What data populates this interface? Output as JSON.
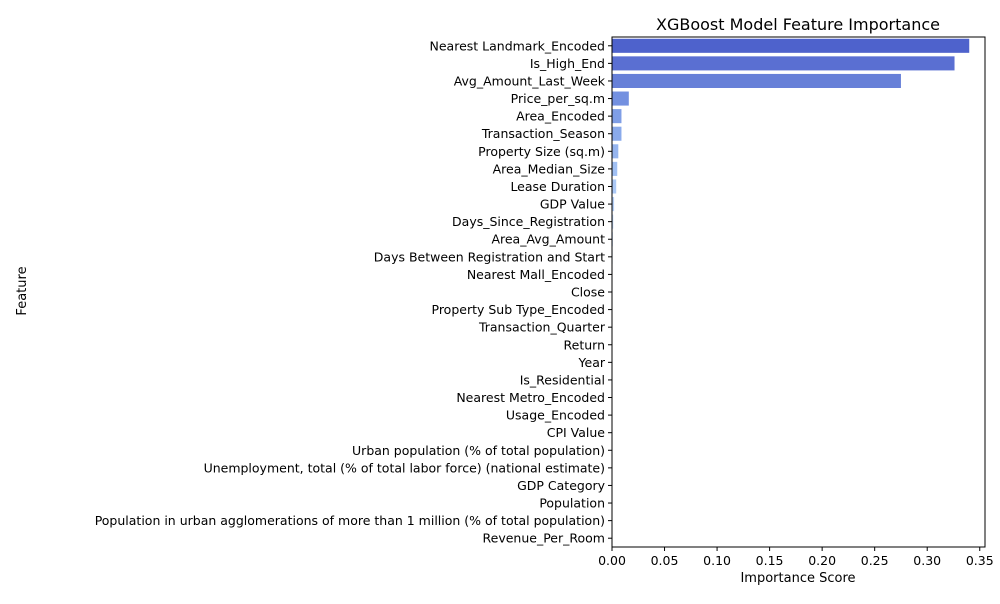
{
  "chart_data": {
    "type": "bar",
    "orientation": "horizontal",
    "title": "XGBoost Model Feature Importance",
    "xlabel": "Importance Score",
    "ylabel": "Feature",
    "xlim": [
      0,
      0.355
    ],
    "xticks": [
      0.0,
      0.05,
      0.1,
      0.15,
      0.2,
      0.25,
      0.3,
      0.35
    ],
    "xtick_labels": [
      "0.00",
      "0.05",
      "0.10",
      "0.15",
      "0.20",
      "0.25",
      "0.30",
      "0.35"
    ],
    "grid": false,
    "categories": [
      "Nearest Landmark_Encoded",
      "Is_High_End",
      "Avg_Amount_Last_Week",
      "Price_per_sq.m",
      "Area_Encoded",
      "Transaction_Season",
      "Property Size (sq.m)",
      "Area_Median_Size",
      "Lease Duration",
      "GDP Value",
      "Days_Since_Registration",
      "Area_Avg_Amount",
      "Days Between Registration and Start",
      "Nearest Mall_Encoded",
      "Close",
      "Property Sub Type_Encoded",
      "Transaction_Quarter",
      "Return",
      "Year",
      "Is_Residential",
      "Nearest Metro_Encoded",
      "Usage_Encoded",
      "CPI Value",
      "Urban population (% of total population)",
      "Unemployment, total (% of total labor force) (national estimate)",
      "GDP Category",
      "Population",
      "Population in urban agglomerations of more than 1 million (% of total population)",
      "Revenue_Per_Room"
    ],
    "values": [
      0.34,
      0.326,
      0.275,
      0.016,
      0.009,
      0.009,
      0.006,
      0.005,
      0.004,
      0.002,
      0.0012,
      0.0008,
      0.0006,
      0.0005,
      0.0004,
      0.0003,
      0.0003,
      0.0002,
      0.0002,
      0.0002,
      0.0001,
      0.0001,
      0.0001,
      0.0001,
      0.0001,
      0.0001,
      0.0001,
      0.0001,
      0.0001
    ],
    "palette": [
      "#4e62cc",
      "#5a6fd2",
      "#6780d8",
      "#7390e0",
      "#7f9ee6",
      "#8aaaeb",
      "#96b5ef",
      "#a1c0f3",
      "#acc9f6",
      "#b7d1f8",
      "#c1d8f9",
      "#cbdef9",
      "#d4e2f8",
      "#dce5f6",
      "#e3e7f2",
      "#e8e6ec",
      "#ecdfe3",
      "#eed7da",
      "#efcfcf",
      "#eec6c4",
      "#edbcb9",
      "#eab1ad",
      "#e7a6a1",
      "#e39a94",
      "#de8e87",
      "#d8817a",
      "#d1746d",
      "#c96760",
      "#c05a53"
    ]
  }
}
